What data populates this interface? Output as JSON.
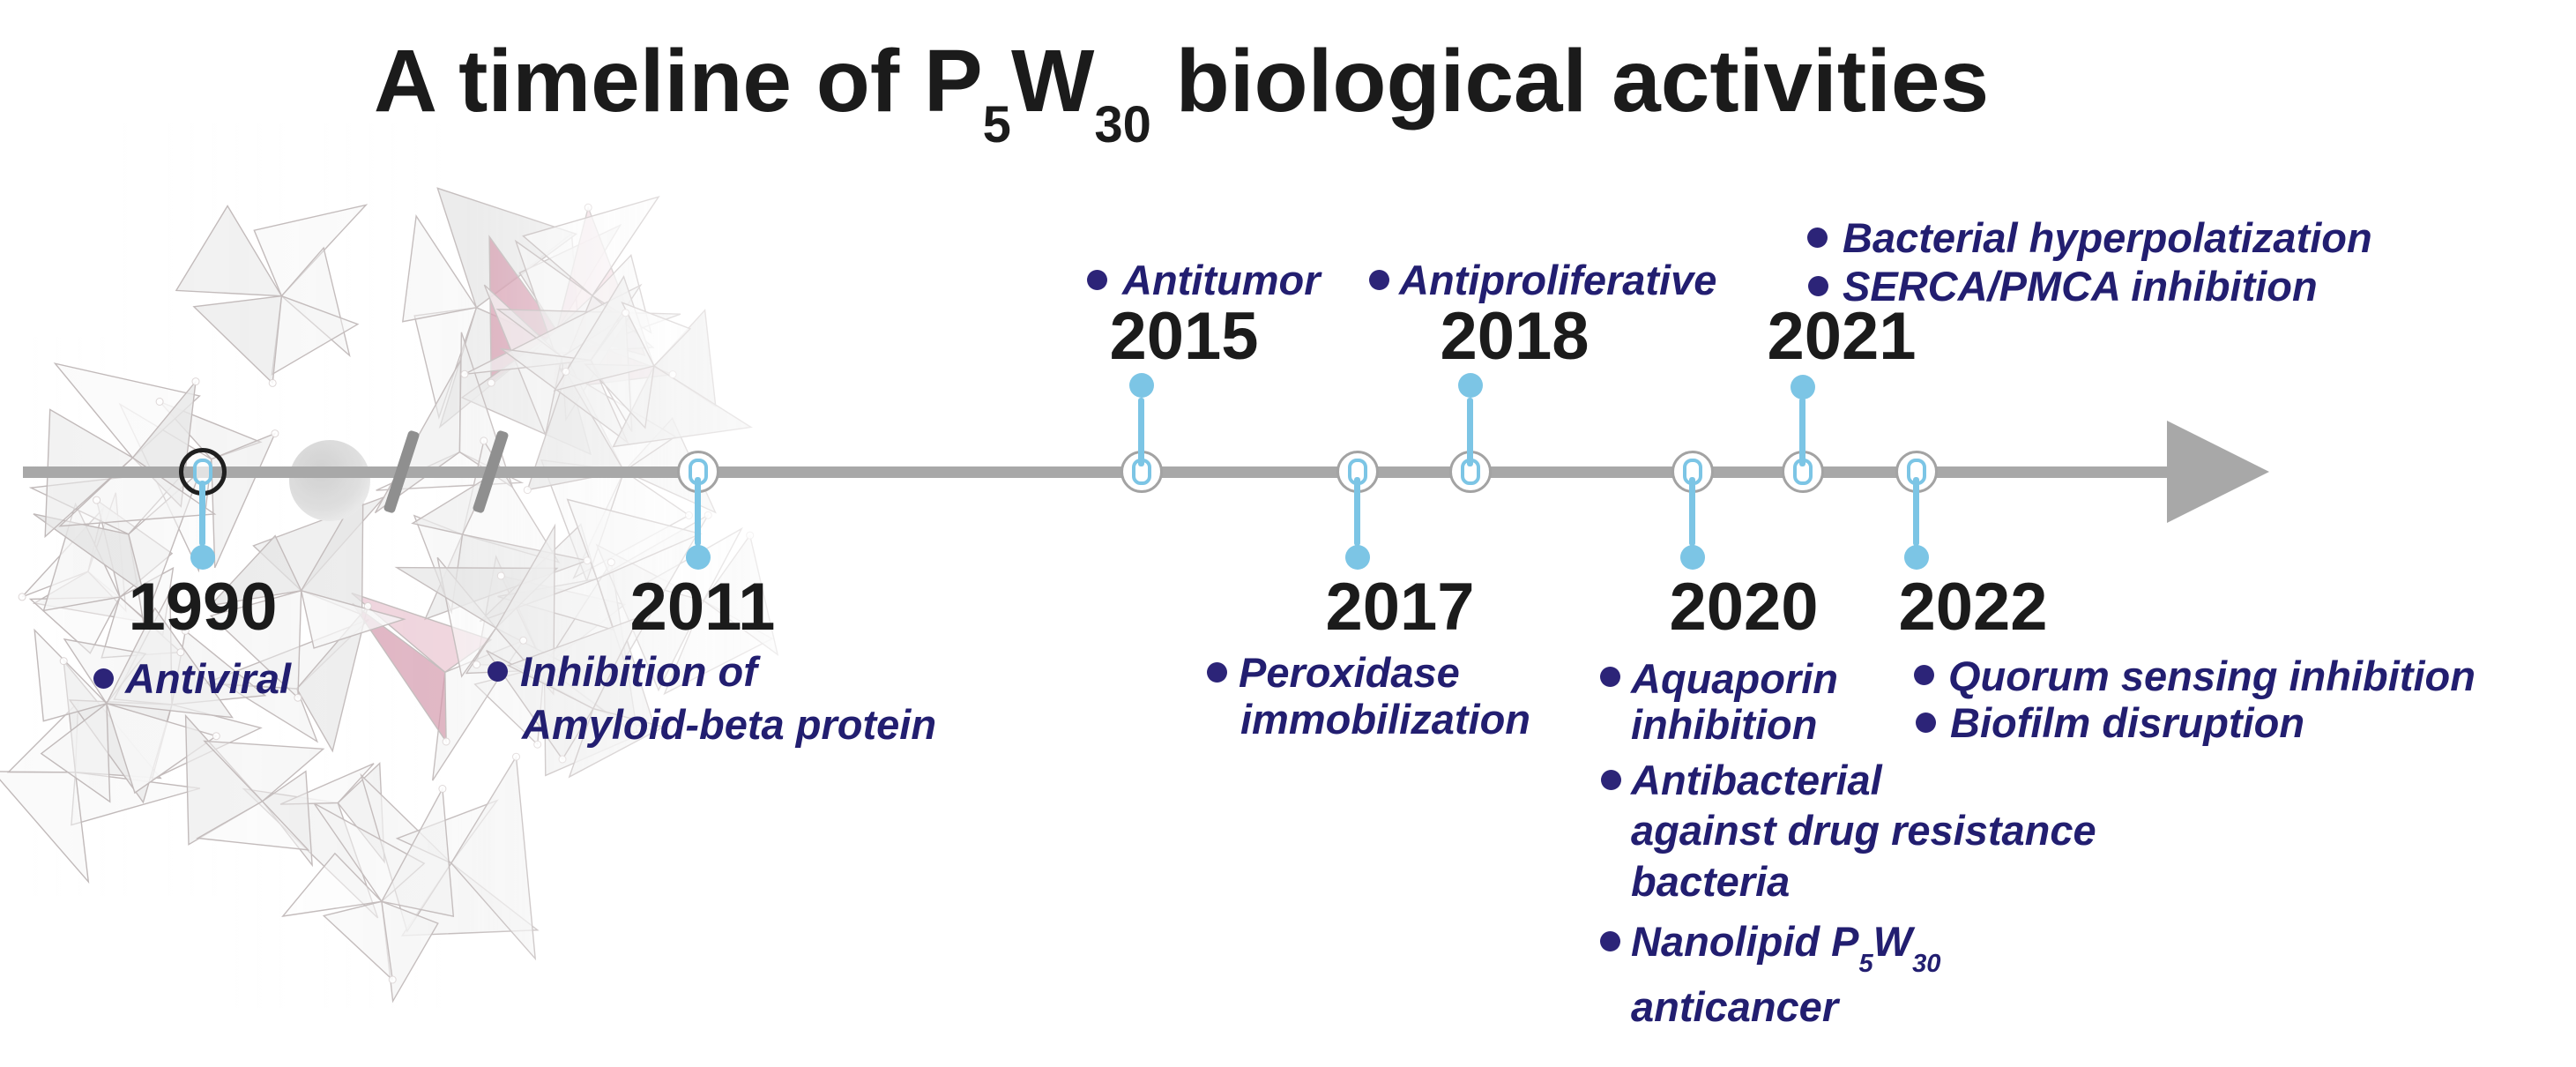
{
  "title": {
    "part1": "A timeline of P",
    "sub1": "5",
    "part2": "W",
    "sub2": "30",
    "part3": " biological activities"
  },
  "colors": {
    "title": "#1b1b1b",
    "year": "#1b1b1b",
    "ink": "#221e70",
    "bullet": "#2c2478",
    "accent": "#7cc5e5",
    "line": "#a8a8a8",
    "slash": "#8f8f8f",
    "ring": "#a3a3a3",
    "ring_1990": "#1f1f1f",
    "gray_face": "#e4e4e4",
    "pink_face": "#d593a9"
  },
  "events": [
    {
      "year": "1990",
      "side": "below",
      "blocks": [
        {
          "lines": [
            {
              "text": "Antiviral"
            }
          ]
        }
      ]
    },
    {
      "year": "2011",
      "side": "below",
      "blocks": [
        {
          "lines": [
            {
              "text": "Inhibition of"
            },
            {
              "text": "Amyloid-beta protein"
            }
          ]
        }
      ]
    },
    {
      "year": "2015",
      "side": "above",
      "blocks": [
        {
          "lines": [
            {
              "text": "Antitumor"
            }
          ]
        }
      ]
    },
    {
      "year": "2017",
      "side": "below",
      "blocks": [
        {
          "lines": [
            {
              "text": "Peroxidase"
            },
            {
              "text": "immobilization"
            }
          ]
        }
      ]
    },
    {
      "year": "2018",
      "side": "above",
      "blocks": [
        {
          "lines": [
            {
              "text": "Antiproliferative"
            }
          ]
        }
      ]
    },
    {
      "year": "2020",
      "side": "below",
      "blocks": [
        {
          "lines": [
            {
              "text": "Aquaporin"
            },
            {
              "text": "inhibition"
            }
          ]
        },
        {
          "lines": [
            {
              "text": "Antibacterial"
            },
            {
              "text": "against drug resistance"
            },
            {
              "text": "bacteria"
            }
          ]
        },
        {
          "lines": [
            {
              "pre": "Nanolipid P",
              "sub1": "5",
              "mid": "W",
              "sub2": "30"
            },
            {
              "text": "anticancer"
            }
          ]
        }
      ]
    },
    {
      "year": "2021",
      "side": "above",
      "blocks": [
        {
          "lines": [
            {
              "text": "Bacterial hyperpolatization"
            }
          ]
        },
        {
          "lines": [
            {
              "text": "SERCA/PMCA inhibition"
            }
          ]
        }
      ]
    },
    {
      "year": "2022",
      "side": "below",
      "blocks": [
        {
          "lines": [
            {
              "text": "Quorum sensing inhibition"
            }
          ]
        },
        {
          "lines": [
            {
              "text": "Biofilm disruption"
            }
          ]
        }
      ]
    }
  ]
}
